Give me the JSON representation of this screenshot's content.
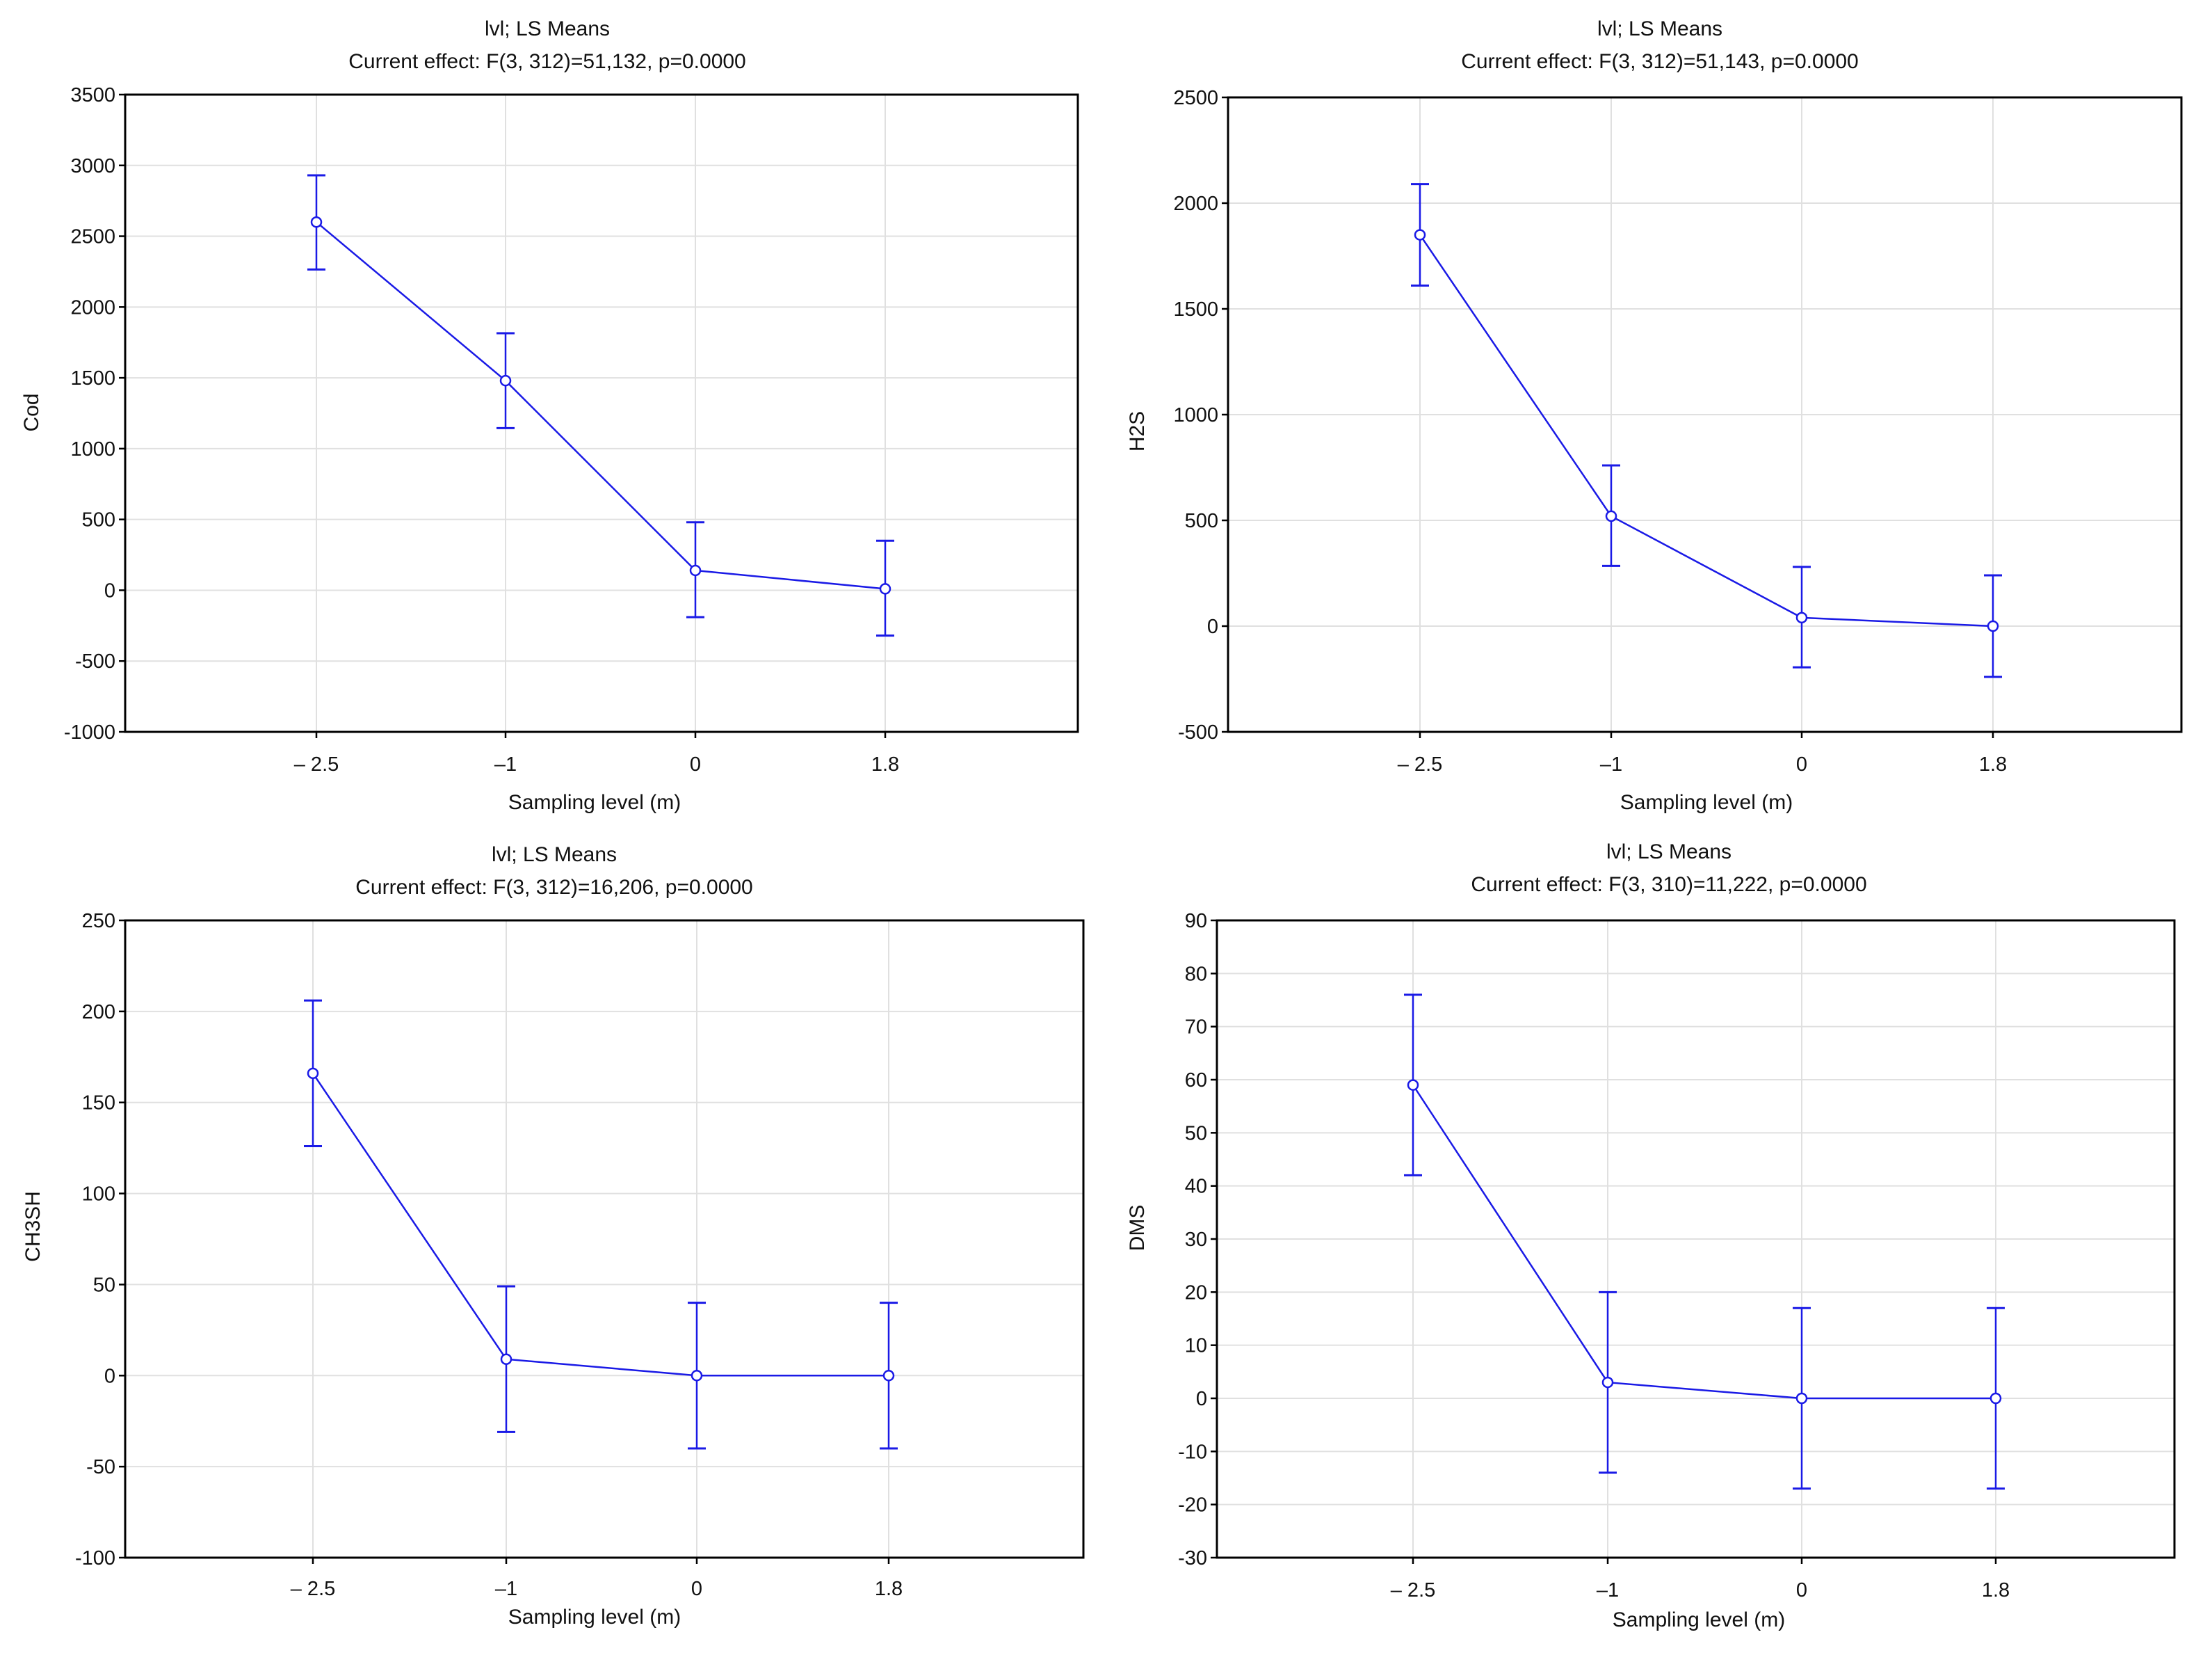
{
  "chart_data": [
    {
      "type": "line",
      "title": "lvl; LS Means",
      "subtitle": "Current effect: F(3, 312)=51,132, p=0.0000",
      "xlabel": "Sampling level (m)",
      "ylabel": "Cod",
      "categories": [
        "– 2.5",
        "–1",
        "0",
        "1.8"
      ],
      "values": [
        2600,
        1480,
        140,
        10
      ],
      "err_upper": [
        2930,
        1815,
        480,
        350
      ],
      "err_lower": [
        2265,
        1145,
        -190,
        -320
      ],
      "ylim": [
        -1000,
        3500
      ],
      "yticks": [
        "3500",
        "3000",
        "2500",
        "2000",
        "1500",
        "1000",
        "500",
        "0",
        "-500",
        "-1000"
      ],
      "grid": true,
      "color": "#1a1ae6"
    },
    {
      "type": "line",
      "title": "lvl; LS Means",
      "subtitle": "Current effect: F(3, 312)=51,143, p=0.0000",
      "xlabel": "Sampling level (m)",
      "ylabel": "H2S",
      "categories": [
        "– 2.5",
        "–1",
        "0",
        "1.8"
      ],
      "values": [
        1850,
        520,
        40,
        0
      ],
      "err_upper": [
        2090,
        760,
        280,
        240
      ],
      "err_lower": [
        1610,
        285,
        -195,
        -240
      ],
      "ylim": [
        -500,
        2500
      ],
      "yticks": [
        "2500",
        "2000",
        "1500",
        "1000",
        "500",
        "0",
        "-500"
      ],
      "grid": true,
      "color": "#1a1ae6"
    },
    {
      "type": "line",
      "title": "lvl; LS Means",
      "subtitle": "Current effect: F(3, 312)=16,206, p=0.0000",
      "xlabel": "Sampling level (m)",
      "ylabel": "CH3SH",
      "categories": [
        "– 2.5",
        "–1",
        "0",
        "1.8"
      ],
      "values": [
        166,
        9,
        0,
        0
      ],
      "err_upper": [
        206,
        49,
        40,
        40
      ],
      "err_lower": [
        126,
        -31,
        -40,
        -40
      ],
      "ylim": [
        -100,
        250
      ],
      "yticks": [
        "250",
        "200",
        "150",
        "100",
        "50",
        "0",
        "-50",
        "-100"
      ],
      "grid": true,
      "color": "#1a1ae6"
    },
    {
      "type": "line",
      "title": "lvl; LS Means",
      "subtitle": "Current effect: F(3, 310)=11,222, p=0.0000",
      "xlabel": "Sampling level (m)",
      "ylabel": "DMS",
      "categories": [
        "– 2.5",
        "–1",
        "0",
        "1.8"
      ],
      "values": [
        59,
        3,
        0,
        0
      ],
      "err_upper": [
        76,
        20,
        17,
        17
      ],
      "err_lower": [
        42,
        -14,
        -17,
        -17
      ],
      "ylim": [
        -30,
        90
      ],
      "yticks": [
        "90",
        "80",
        "70",
        "60",
        "50",
        "40",
        "30",
        "20",
        "10",
        "0",
        "-10",
        "-20",
        "-30"
      ],
      "grid": true,
      "color": "#1a1ae6"
    }
  ]
}
